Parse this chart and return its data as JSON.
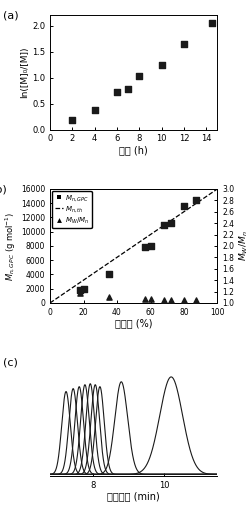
{
  "panel_a": {
    "title": "(a)",
    "xlabel": "时间 (h)",
    "ylabel": "ln([M]₀/[M])",
    "x": [
      2,
      4,
      6,
      7,
      8,
      10,
      12,
      14.5
    ],
    "y": [
      0.18,
      0.37,
      0.73,
      0.79,
      1.04,
      1.24,
      1.65,
      2.05
    ],
    "xlim": [
      0,
      15
    ],
    "ylim": [
      0.0,
      2.2
    ],
    "xticks": [
      0,
      2,
      4,
      6,
      8,
      10,
      12,
      14
    ],
    "yticks": [
      0.0,
      0.5,
      1.0,
      1.5,
      2.0
    ]
  },
  "panel_b": {
    "title": "(b)",
    "xlabel": "转化率 (%)",
    "ylabel_left": "$M_{n,GPC}$ (g mol$^{-1}$)",
    "ylabel_right": "$M_W/M_n$",
    "xlim": [
      0,
      100
    ],
    "ylim_left": [
      0,
      16000
    ],
    "ylim_right": [
      1.0,
      3.0
    ],
    "mn_gpc_x": [
      18,
      20,
      35,
      57,
      60,
      68,
      72,
      80,
      87
    ],
    "mn_gpc_y": [
      1800,
      2000,
      4000,
      7900,
      8000,
      11000,
      11200,
      13600,
      14500
    ],
    "mw_mn_x": [
      18,
      35,
      57,
      60,
      68,
      72,
      80,
      87
    ],
    "mw_mn_y": [
      1.18,
      1.1,
      1.07,
      1.07,
      1.06,
      1.06,
      1.05,
      1.06
    ],
    "th_line_x": [
      0,
      100
    ],
    "th_line_y": [
      0,
      16000
    ],
    "xticks": [
      0,
      20,
      40,
      60,
      80,
      100
    ],
    "yticks_left": [
      0,
      2000,
      4000,
      6000,
      8000,
      10000,
      12000,
      14000,
      16000
    ],
    "yticks_right": [
      1.0,
      1.2,
      1.4,
      1.6,
      1.8,
      2.0,
      2.2,
      2.4,
      2.6,
      2.8,
      3.0
    ],
    "legend": [
      "$M_{n,GPC}$",
      "$M_{n,th}$",
      "$M_W/M_n$"
    ]
  },
  "panel_c": {
    "title": "(c)",
    "xlabel": "流出时间 (min)",
    "xlim": [
      6.8,
      11.5
    ],
    "xticks": [
      8,
      10
    ],
    "peak_centers": [
      7.25,
      7.45,
      7.62,
      7.78,
      7.93,
      8.07,
      8.2,
      8.8,
      10.2
    ],
    "peak_sigmas": [
      0.12,
      0.12,
      0.12,
      0.12,
      0.12,
      0.12,
      0.12,
      0.18,
      0.32
    ],
    "peak_heights": [
      0.85,
      0.88,
      0.9,
      0.92,
      0.93,
      0.92,
      0.9,
      0.95,
      1.0
    ]
  },
  "bg_color": "#ffffff",
  "marker_color": "#1a1a1a",
  "line_color": "#1a1a1a"
}
